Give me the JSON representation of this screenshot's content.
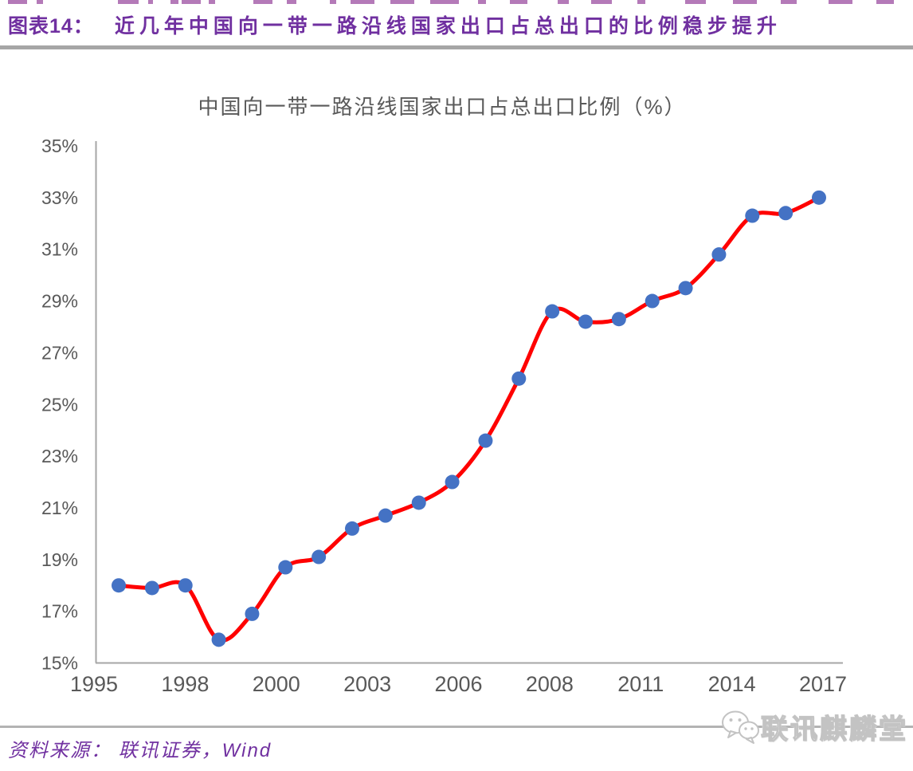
{
  "header": {
    "label": "图表14：",
    "title": "近几年中国向一带一路沿线国家出口占总出口的比例稳步提升"
  },
  "chart_data": {
    "type": "line",
    "title": "中国向一带一路沿线国家出口占总出口比例（%）",
    "series_name": "中国向一带一路沿线国家出口占总出口比例",
    "x": [
      1996,
      1997,
      1998,
      1999,
      2000,
      2001,
      2002,
      2003,
      2004,
      2005,
      2006,
      2007,
      2008,
      2009,
      2010,
      2011,
      2012,
      2013,
      2014,
      2015,
      2016,
      2017
    ],
    "values": [
      18.0,
      17.9,
      18.0,
      15.9,
      16.9,
      18.7,
      19.1,
      20.2,
      20.7,
      21.2,
      22.0,
      23.6,
      26.0,
      28.6,
      28.2,
      28.3,
      29.0,
      29.5,
      30.8,
      32.3,
      32.4,
      33.0
    ],
    "x_tick_labels": [
      "1995",
      "1998",
      "2000",
      "2003",
      "2006",
      "2008",
      "2011",
      "2014",
      "2017"
    ],
    "ylim": [
      15,
      35
    ],
    "y_tick_step": 2,
    "y_tick_suffix": "%",
    "grid": false,
    "legend": "none"
  },
  "colors": {
    "header_text": "#7030A0",
    "header_divider": "#a6a6a6",
    "chart_title_text": "#595959",
    "axis_text": "#595959",
    "axis_line": "#a6a6a6",
    "line": "#ff0000",
    "marker": "#4472C4",
    "source_text": "#7030A0",
    "footer_divider": "#b3b3b3",
    "watermark_outline": "#c3c3c3"
  },
  "footer": {
    "source": "资料来源： 联讯证券，Wind",
    "watermark_text": "联讯麒麟堂"
  }
}
